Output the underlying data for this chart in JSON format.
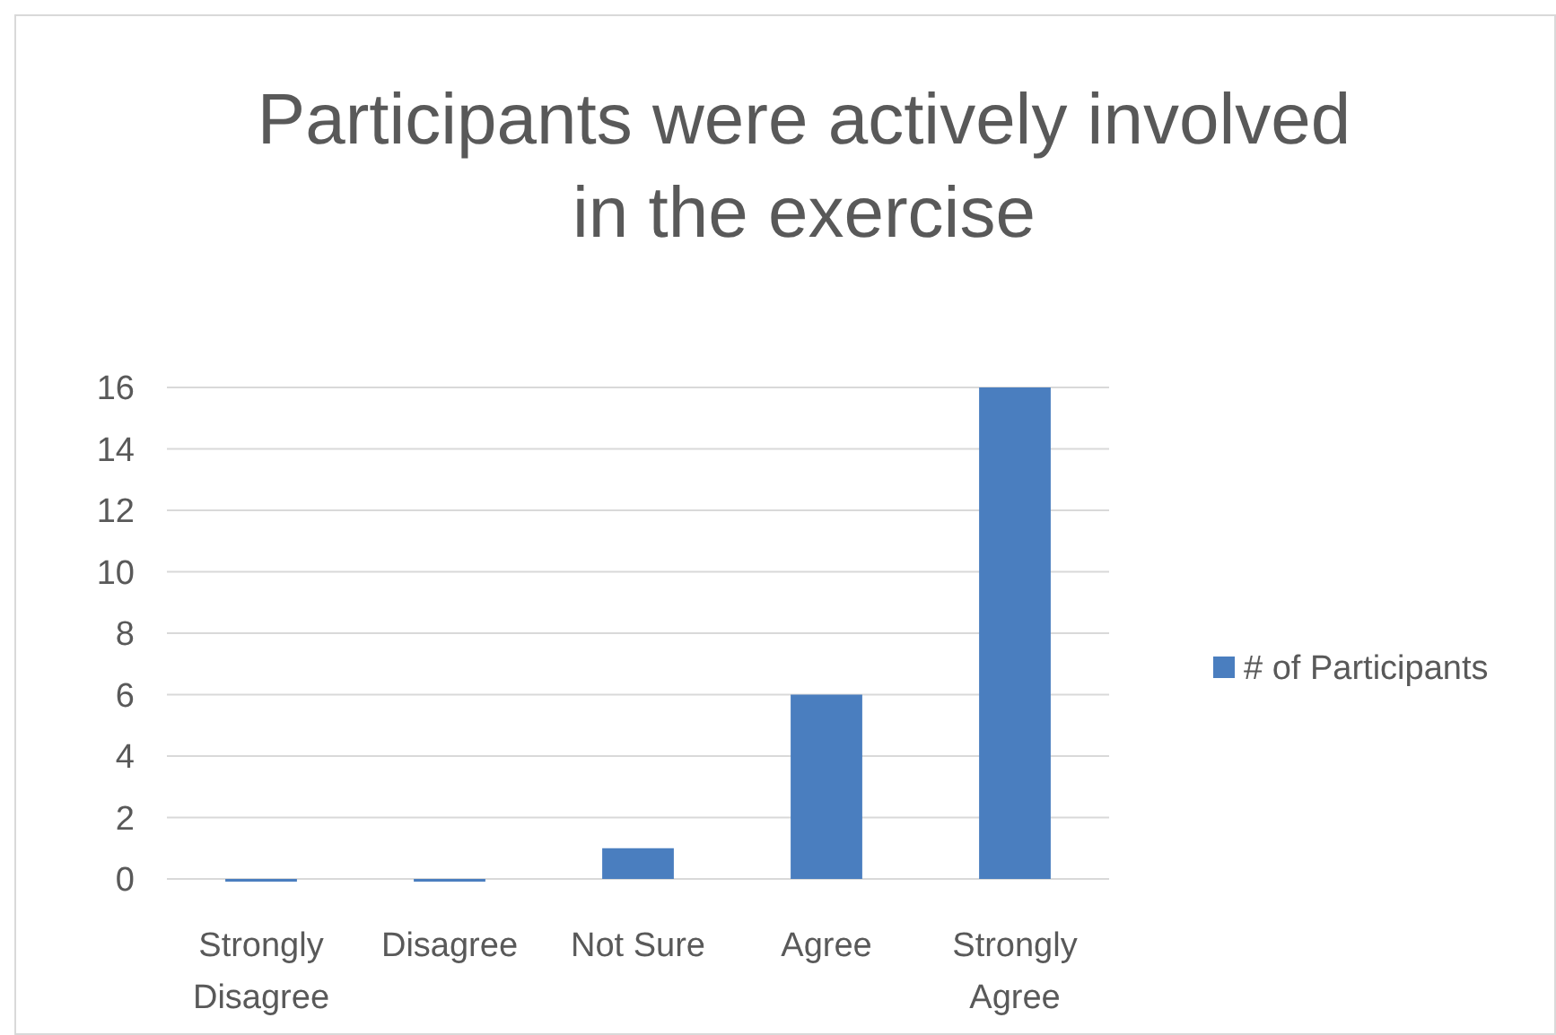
{
  "chart_data": {
    "type": "bar",
    "title": "Participants were actively involved in the exercise",
    "categories": [
      "Strongly Disagree",
      "Disagree",
      "Not Sure",
      "Agree",
      "Strongly Agree"
    ],
    "series": [
      {
        "name": "# of Participants",
        "color": "#4a7ebf",
        "values": [
          0,
          0,
          1,
          6,
          16
        ]
      }
    ],
    "ylim": [
      0,
      16
    ],
    "yticks": [
      0,
      2,
      4,
      6,
      8,
      10,
      12,
      14,
      16
    ],
    "grid": "y",
    "legend": "right"
  }
}
